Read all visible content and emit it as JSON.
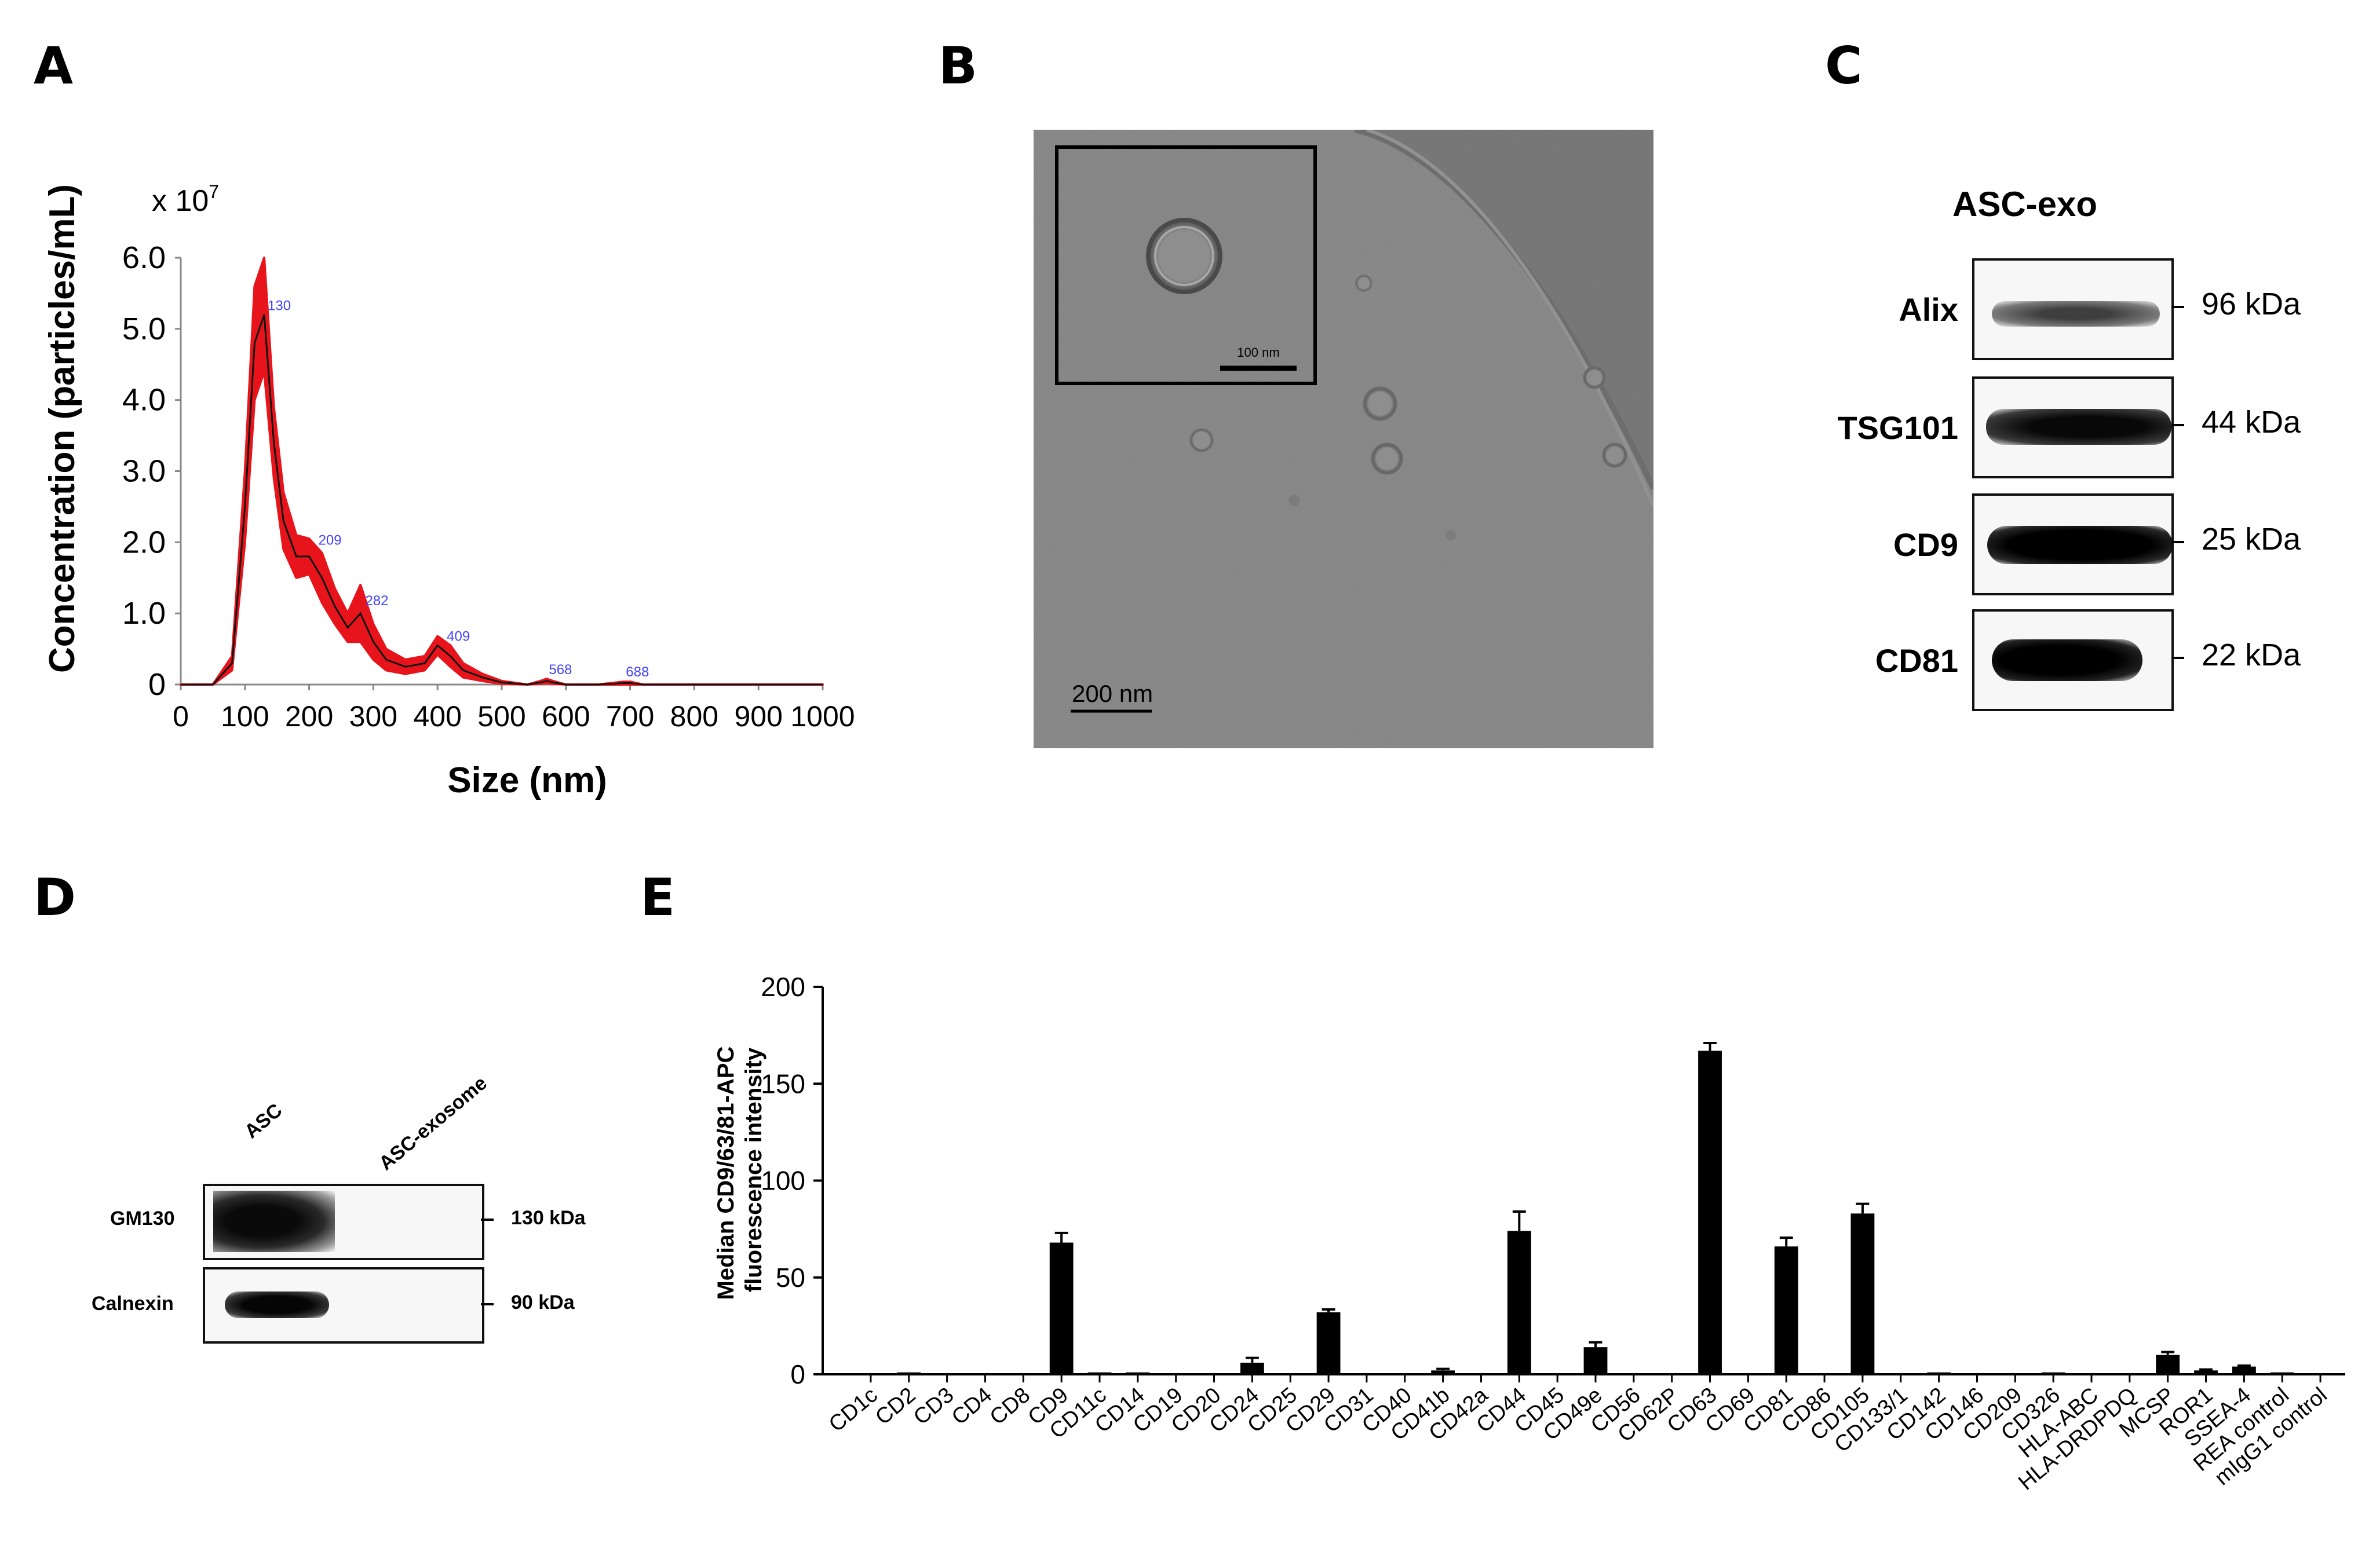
{
  "panels": {
    "a": "A",
    "b": "B",
    "c": "C",
    "d": "D",
    "e": "E"
  },
  "panel_a": {
    "exponent_label": "x 10",
    "exponent_sup": "7",
    "peak_labels": [
      "130",
      "209",
      "282",
      "409",
      "568",
      "688"
    ]
  },
  "panel_b": {
    "inset_scale": "100 nm",
    "main_scale": "200 nm"
  },
  "panel_c": {
    "title": "ASC-exo",
    "bands": [
      {
        "name": "Alix",
        "kda": "96 kDa"
      },
      {
        "name": "TSG101",
        "kda": "44 kDa"
      },
      {
        "name": "CD9",
        "kda": "25 kDa"
      },
      {
        "name": "CD81",
        "kda": "22 kDa"
      }
    ]
  },
  "panel_d": {
    "lanes": [
      "ASC",
      "ASC-exosome"
    ],
    "bands": [
      {
        "name": "GM130",
        "kda": "130 kDa"
      },
      {
        "name": "Calnexin",
        "kda": "90 kDa"
      }
    ]
  },
  "chart_data": [
    {
      "type": "area",
      "title": "",
      "xlabel": "Size (nm)",
      "ylabel": "Concentration (particles/mL)",
      "xlim": [
        0,
        1000
      ],
      "ylim": [
        0,
        6.0
      ],
      "x_ticks": [
        "0",
        "100",
        "200",
        "300",
        "400",
        "500",
        "600",
        "700",
        "800",
        "900",
        "1000"
      ],
      "y_ticks": [
        "0",
        "1.0",
        "2.0",
        "3.0",
        "4.0",
        "5.0",
        "6.0"
      ],
      "grid": false,
      "x": [
        0,
        50,
        80,
        100,
        115,
        130,
        145,
        160,
        180,
        200,
        220,
        240,
        260,
        280,
        300,
        320,
        350,
        380,
        400,
        420,
        440,
        470,
        500,
        540,
        560,
        570,
        580,
        600,
        650,
        690,
        700,
        720,
        1000
      ],
      "y": [
        0,
        0,
        0.3,
        2.5,
        4.8,
        5.2,
        3.4,
        2.3,
        1.8,
        1.8,
        1.5,
        1.1,
        0.8,
        1.0,
        0.6,
        0.35,
        0.25,
        0.3,
        0.55,
        0.4,
        0.2,
        0.1,
        0.03,
        0,
        0.03,
        0.05,
        0.03,
        0,
        0,
        0.02,
        0.02,
        0,
        0
      ],
      "upper": [
        0,
        0,
        0.4,
        3.0,
        5.6,
        6.0,
        3.9,
        2.7,
        2.1,
        2.05,
        1.85,
        1.35,
        1.0,
        1.4,
        0.85,
        0.5,
        0.35,
        0.4,
        0.68,
        0.55,
        0.3,
        0.15,
        0.05,
        0,
        0.05,
        0.08,
        0.05,
        0,
        0,
        0.04,
        0.04,
        0,
        0
      ]
    },
    {
      "type": "bar",
      "title": "",
      "xlabel": "",
      "ylabel": "Median CD9/63/81-APC fluorescence intensity",
      "ylim": [
        0,
        200
      ],
      "y_ticks": [
        "0",
        "50",
        "100",
        "150",
        "200"
      ],
      "grid": false,
      "categories": [
        "CD1c",
        "CD2",
        "CD3",
        "CD4",
        "CD8",
        "CD9",
        "CD11c",
        "CD14",
        "CD19",
        "CD20",
        "CD24",
        "CD25",
        "CD29",
        "CD31",
        "CD40",
        "CD41b",
        "CD42a",
        "CD44",
        "CD45",
        "CD49e",
        "CD56",
        "CD62P",
        "CD63",
        "CD69",
        "CD81",
        "CD86",
        "CD105",
        "CD133/1",
        "CD142",
        "CD146",
        "CD209",
        "CD326",
        "HLA-ABC",
        "HLA-DRDPDQ",
        "MCSP",
        "ROR1",
        "SSEA-4",
        "REA control",
        "mIgG1 control"
      ],
      "values": [
        0.5,
        1,
        0.5,
        0.5,
        0.5,
        68,
        1,
        1,
        0.5,
        0.5,
        6,
        0.5,
        32,
        0.5,
        0.5,
        2,
        0.5,
        74,
        0.5,
        14,
        0.5,
        0.5,
        167,
        0.5,
        66,
        0.5,
        83,
        0.5,
        1,
        0.5,
        0.5,
        1,
        0.5,
        0.5,
        10,
        2,
        4,
        1,
        0.5
      ],
      "errors": [
        0,
        0,
        0,
        0,
        0,
        5,
        0,
        0,
        0,
        0,
        2.5,
        0,
        1.5,
        0,
        0,
        0.8,
        0,
        10,
        0,
        2.5,
        0,
        0,
        4,
        0,
        4.5,
        0,
        5,
        0,
        0,
        0,
        0,
        0,
        0,
        0,
        1.5,
        0.5,
        0.5,
        0,
        0
      ]
    }
  ]
}
